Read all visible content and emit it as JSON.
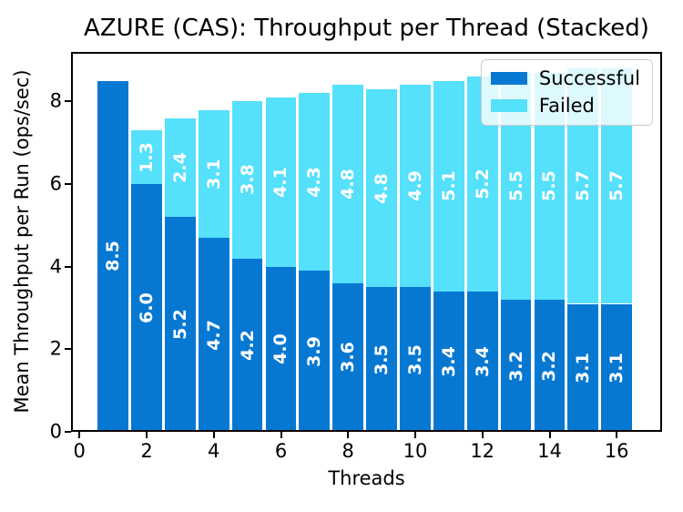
{
  "chart_data": {
    "type": "bar",
    "stacked": true,
    "title": "AZURE (CAS): Throughput per Thread (Stacked)",
    "xlabel": "Threads",
    "ylabel": "Mean Throughput per Run (ops/sec)",
    "x": [
      1,
      2,
      3,
      4,
      5,
      6,
      7,
      8,
      9,
      10,
      11,
      12,
      13,
      14,
      15,
      16
    ],
    "series": [
      {
        "name": "Successful",
        "color": "#0778d2",
        "values": [
          8.5,
          6.0,
          5.2,
          4.7,
          4.2,
          4.0,
          3.9,
          3.6,
          3.5,
          3.5,
          3.4,
          3.4,
          3.2,
          3.2,
          3.1,
          3.1
        ]
      },
      {
        "name": "Failed",
        "color": "#55e0fb",
        "values": [
          0.0,
          1.3,
          2.4,
          3.1,
          3.8,
          4.1,
          4.3,
          4.8,
          4.8,
          4.9,
          5.1,
          5.2,
          5.5,
          5.5,
          5.7,
          5.7
        ]
      }
    ],
    "bar_width": 0.92,
    "xlim": [
      -0.25,
      17.35
    ],
    "ylim": [
      0,
      9.2
    ],
    "xticks": [
      0,
      2,
      4,
      6,
      8,
      10,
      12,
      14,
      16
    ],
    "yticks": [
      0,
      2,
      4,
      6,
      8
    ],
    "legend": {
      "position": "upper right",
      "labels": [
        "Successful",
        "Failed"
      ]
    },
    "bar_label_color": "#ffffff",
    "bar_label_rotation": 90,
    "grid": false,
    "spine_color": "#000000"
  }
}
